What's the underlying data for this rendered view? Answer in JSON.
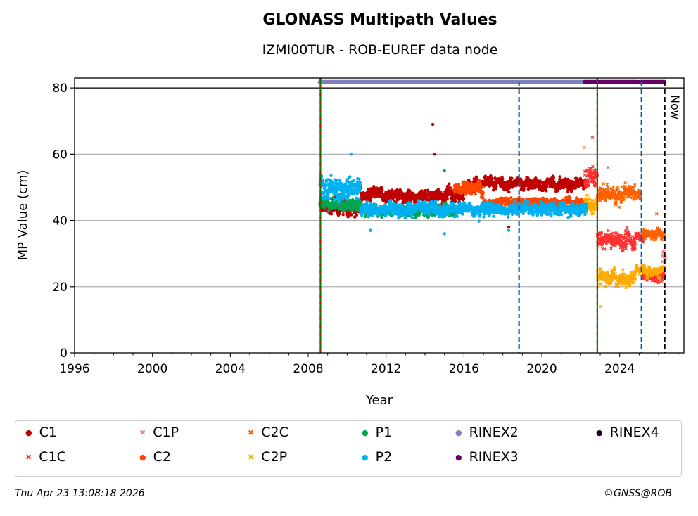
{
  "chart_data": {
    "type": "scatter",
    "title": "GLONASS Multipath Values",
    "subtitle": "IZMI00TUR - ROB-EUREF data node",
    "xlabel": "Year",
    "ylabel": "MP Value (cm)",
    "xlim": [
      1996,
      2027.3
    ],
    "ylim": [
      0,
      83
    ],
    "x_ticks": [
      "1996",
      "2000",
      "2004",
      "2008",
      "2012",
      "2016",
      "2020",
      "2024"
    ],
    "y_ticks": [
      "0",
      "20",
      "40",
      "60",
      "80"
    ],
    "grid": "horizontal",
    "now_label": "Now",
    "series": [
      {
        "name": "C1",
        "color": "#c00000",
        "marker": "circle",
        "segments": [
          [
            2008.6,
            2010.7,
            44,
            2
          ],
          [
            2010.7,
            2016,
            47.5,
            2
          ],
          [
            2016,
            2022.3,
            51,
            1.8
          ]
        ],
        "outliers": [
          [
            2014.4,
            69
          ],
          [
            2018.3,
            38
          ],
          [
            2014.5,
            60
          ]
        ]
      },
      {
        "name": "C1C",
        "color": "#ff3030",
        "marker": "x",
        "segments": [
          [
            2022.2,
            2022.85,
            53,
            3
          ],
          [
            2022.85,
            2024.8,
            34,
            2.5
          ],
          [
            2024.8,
            2025.2,
            35,
            1.5
          ],
          [
            2025.2,
            2026.3,
            23,
            1.5
          ]
        ],
        "outliers": [
          [
            2022.6,
            65
          ]
        ]
      },
      {
        "name": "C1P",
        "color": "#ff8080",
        "marker": "x",
        "segments": [
          [
            2026.2,
            2026.35,
            30,
            2
          ]
        ],
        "outliers": []
      },
      {
        "name": "C2",
        "color": "#ff4500",
        "marker": "circle",
        "segments": [
          [
            2015.5,
            2017,
            50,
            2
          ],
          [
            2017,
            2022.3,
            45.5,
            1.2
          ]
        ],
        "outliers": []
      },
      {
        "name": "C2C",
        "color": "#ff6000",
        "marker": "x",
        "segments": [
          [
            2022.85,
            2024.8,
            48,
            2.5
          ],
          [
            2024.8,
            2025.1,
            48,
            1.5
          ],
          [
            2025.2,
            2026.3,
            36,
            1.5
          ]
        ],
        "outliers": [
          [
            2023.4,
            56
          ],
          [
            2025.9,
            42
          ]
        ]
      },
      {
        "name": "C2P",
        "color": "#ffaa00",
        "marker": "x",
        "segments": [
          [
            2022.2,
            2022.85,
            45,
            3
          ],
          [
            2022.85,
            2024.8,
            23,
            2.5
          ],
          [
            2024.8,
            2026.3,
            25,
            1.5
          ]
        ],
        "outliers": [
          [
            2022.2,
            62
          ],
          [
            2023,
            14
          ]
        ]
      },
      {
        "name": "P1",
        "color": "#00a550",
        "marker": "circle",
        "segments": [
          [
            2008.6,
            2010.7,
            45,
            2
          ],
          [
            2010.7,
            2015.5,
            43,
            1.5
          ]
        ],
        "outliers": [
          [
            2015,
            55
          ]
        ]
      },
      {
        "name": "P2",
        "color": "#00b0f0",
        "marker": "circle",
        "segments": [
          [
            2008.6,
            2010.7,
            50,
            3.5
          ],
          [
            2010.7,
            2022.3,
            43.5,
            1.8
          ]
        ],
        "outliers": [
          [
            2010.2,
            60
          ],
          [
            2011.2,
            37
          ],
          [
            2015,
            36
          ],
          [
            2018.3,
            37
          ]
        ]
      }
    ],
    "format_bars": [
      {
        "name": "RINEX2",
        "color": "#8080c0",
        "from": 2008.6,
        "to": 2022.2,
        "value": 82
      },
      {
        "name": "RINEX3",
        "color": "#660066",
        "from": 2022.2,
        "to": 2024.9,
        "value": 82
      },
      {
        "name": "RINEX3",
        "color": "#660066",
        "from": 2025.0,
        "to": 2026.3,
        "value": 82
      }
    ],
    "vlines": [
      {
        "x": 2008.63,
        "style": "green-red"
      },
      {
        "x": 2018.83,
        "style": "blue-dashed"
      },
      {
        "x": 2022.85,
        "style": "green-red"
      },
      {
        "x": 2025.12,
        "style": "blue-dashed"
      },
      {
        "x": 2026.31,
        "style": "black-dashed"
      }
    ]
  },
  "legend": [
    {
      "label": "C1",
      "color": "#c00000",
      "marker": "●"
    },
    {
      "label": "C1C",
      "color": "#ff3030",
      "marker": "✖"
    },
    {
      "label": "C1P",
      "color": "#ff8080",
      "marker": "✖"
    },
    {
      "label": "C2",
      "color": "#ff4500",
      "marker": "●"
    },
    {
      "label": "C2C",
      "color": "#ff6000",
      "marker": "✖"
    },
    {
      "label": "C2P",
      "color": "#ffaa00",
      "marker": "✖"
    },
    {
      "label": "P1",
      "color": "#00a550",
      "marker": "●"
    },
    {
      "label": "P2",
      "color": "#00b0f0",
      "marker": "●"
    },
    {
      "label": "RINEX2",
      "color": "#8080c0",
      "marker": "●"
    },
    {
      "label": "RINEX3",
      "color": "#660066",
      "marker": "●"
    },
    {
      "label": "RINEX4",
      "color": "#1a0020",
      "marker": "●"
    }
  ],
  "footer": {
    "timestamp": "Thu Apr 23 13:08:18 2026",
    "credit": "©GNSS@ROB"
  }
}
